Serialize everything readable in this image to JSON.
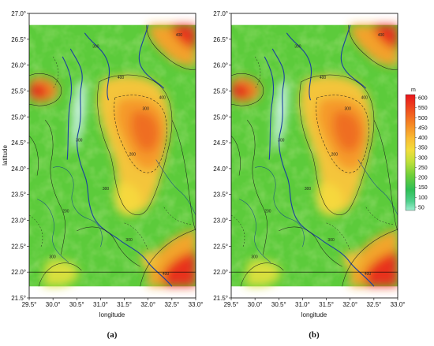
{
  "panels": [
    {
      "id": "a",
      "label": "(a)",
      "xlabel": "longitude",
      "ylabel": "latitude",
      "x_ticks": [
        "29.5°",
        "30.0°",
        "30.5°",
        "31.0°",
        "31.5°",
        "32.0°",
        "32.5°",
        "33.0°"
      ],
      "y_ticks": [
        "27.0°",
        "26.5°",
        "26.0°",
        "25.5°",
        "25.0°",
        "24.5°",
        "24.0°",
        "23.5°",
        "23.0°",
        "22.5°",
        "22.0°",
        "21.5°"
      ],
      "contour_labels": [
        "400",
        "300",
        "300",
        "200",
        "300",
        "400",
        "200",
        "300",
        "400",
        "300",
        "300",
        "400"
      ]
    },
    {
      "id": "b",
      "label": "(b)",
      "xlabel": "longitude",
      "ylabel": "",
      "x_ticks": [
        "29.5°",
        "30.0°",
        "30.5°",
        "31.0°",
        "31.5°",
        "32.0°",
        "32.5°",
        "33.0°"
      ],
      "y_ticks": [
        "27.0°",
        "26.5°",
        "26.0°",
        "25.5°",
        "25.0°",
        "24.5°",
        "24.0°",
        "23.5°",
        "23.0°",
        "22.5°",
        "22.0°",
        "21.5°"
      ],
      "contour_labels": [
        "400",
        "300",
        "300",
        "200",
        "300",
        "400",
        "200",
        "300",
        "400",
        "300",
        "300",
        "400"
      ]
    }
  ],
  "colorbar": {
    "unit": "m",
    "ticks": [
      "600",
      "550",
      "500",
      "450",
      "400",
      "350",
      "300",
      "250",
      "200",
      "150",
      "100",
      "50"
    ],
    "colors": [
      "#e8141c",
      "#ee3e1e",
      "#f36a22",
      "#f7962a",
      "#f9bd34",
      "#f4dc3c",
      "#cfe23a",
      "#8fd63a",
      "#4cc83c",
      "#2fbf55",
      "#4fd08c",
      "#8ee8c2"
    ]
  },
  "map": {
    "lon_range": [
      29.5,
      33.0
    ],
    "lat_range": [
      21.5,
      27.0
    ],
    "reference_parallel": 22.0
  }
}
